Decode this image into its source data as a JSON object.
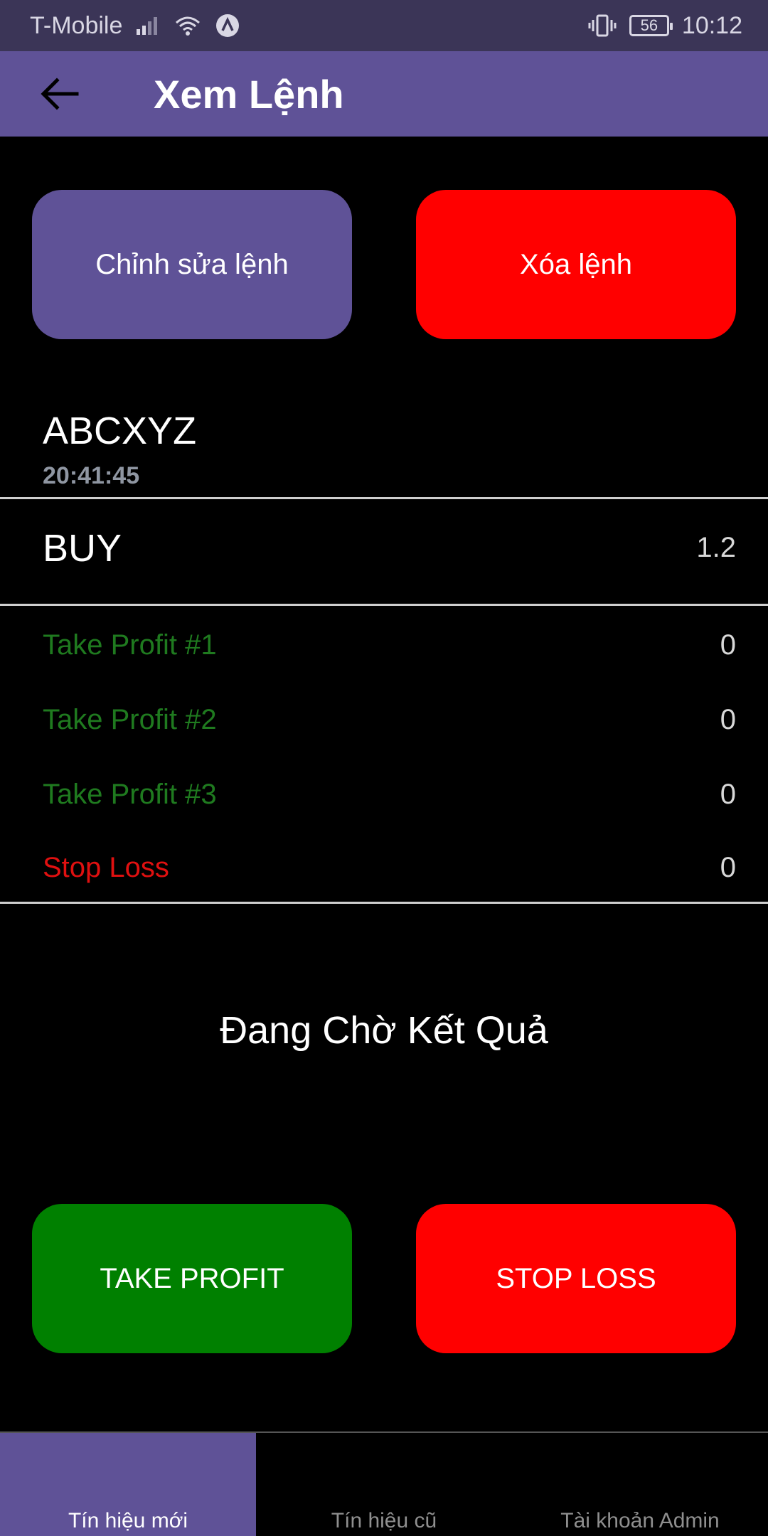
{
  "status_bar": {
    "carrier": "T-Mobile",
    "battery_level": "56",
    "time": "10:12",
    "icons": [
      "signal-icon",
      "wifi-icon",
      "app-notification-icon",
      "vibrate-icon",
      "battery-icon"
    ]
  },
  "app_bar": {
    "title": "Xem Lệnh",
    "back_icon": "arrow-left-icon"
  },
  "actions": {
    "edit_label": "Chỉnh sửa lệnh",
    "delete_label": "Xóa lệnh"
  },
  "order": {
    "symbol": "ABCXYZ",
    "time": "20:41:45",
    "side": "BUY",
    "volume": "1.2",
    "levels": [
      {
        "label": "Take Profit #1",
        "value": "0"
      },
      {
        "label": "Take Profit #2",
        "value": "0"
      },
      {
        "label": "Take Profit #3",
        "value": "0"
      },
      {
        "label": "Stop Loss",
        "value": "0"
      }
    ],
    "status": "Đang Chờ Kết Quả"
  },
  "result_actions": {
    "take_profit_label": "TAKE PROFIT",
    "stop_loss_label": "STOP LOSS"
  },
  "bottom_nav": {
    "items": [
      {
        "label": "Tín hiệu mới",
        "active": true
      },
      {
        "label": "Tín hiệu cũ",
        "active": false
      },
      {
        "label": "Tài khoản Admin",
        "active": false
      }
    ]
  },
  "colors": {
    "primary": "#5f5297",
    "danger": "#ff0000",
    "success": "#008000",
    "take_profit_text": "#1f7a1f",
    "stop_loss_text": "#e01010",
    "status_bar": "#3b3557"
  }
}
